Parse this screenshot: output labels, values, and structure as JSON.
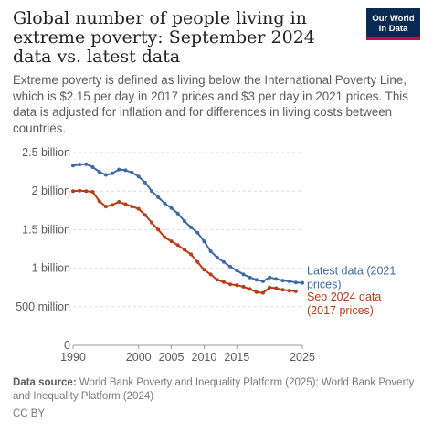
{
  "header": {
    "title": "Global number of people living in extreme poverty: September 2024 data vs. latest data",
    "subtitle": "Extreme poverty is defined as living below the International Poverty Line, which is $2.15 per day in 2017 prices and $3 per day in 2021 prices. This data is adjusted for inflation and for differences in living costs between countries.",
    "logo_line1": "Our World",
    "logo_line2": "in Data"
  },
  "footer": {
    "source_label": "Data source:",
    "source_text": "World Bank Poverty and Inequality Platform (2025); World Bank Poverty and Inequality Platform (2024)",
    "license": "CC BY"
  },
  "colors": {
    "latest": "#3d6aa6",
    "sep2024": "#b83b17",
    "grid": "#dddddd",
    "text": "#5b5b5b"
  },
  "chart_data": {
    "type": "line",
    "title": "Global number of people living in extreme poverty: September 2024 data vs. latest data",
    "xlim": [
      1990,
      2025
    ],
    "ylim": [
      0,
      2500000000
    ],
    "x_ticks": [
      1990,
      2000,
      2005,
      2010,
      2015,
      2025
    ],
    "y_ticks": [
      {
        "value": 0,
        "label": "0"
      },
      {
        "value": 500000000,
        "label": "500 million"
      },
      {
        "value": 1000000000,
        "label": "1 billion"
      },
      {
        "value": 1500000000,
        "label": "1.5 billion"
      },
      {
        "value": 2000000000,
        "label": "2 billion"
      },
      {
        "value": 2500000000,
        "label": "2.5 billion"
      }
    ],
    "grid": "horizontal",
    "legend": "inline labels at right end of lines",
    "series": [
      {
        "name": "Latest data (2021 prices)",
        "label_lines": [
          "Latest data (2021",
          "prices)"
        ],
        "x": [
          1990,
          1991,
          1992,
          1993,
          1994,
          1995,
          1996,
          1997,
          1998,
          1999,
          2000,
          2001,
          2002,
          2003,
          2004,
          2005,
          2006,
          2007,
          2008,
          2009,
          2010,
          2011,
          2012,
          2013,
          2014,
          2015,
          2016,
          2017,
          2018,
          2019,
          2020,
          2021,
          2022,
          2023,
          2024,
          2025
        ],
        "values": [
          2330000000,
          2345000000,
          2350000000,
          2310000000,
          2250000000,
          2210000000,
          2230000000,
          2280000000,
          2270000000,
          2240000000,
          2190000000,
          2110000000,
          2000000000,
          1920000000,
          1840000000,
          1780000000,
          1710000000,
          1610000000,
          1530000000,
          1460000000,
          1350000000,
          1220000000,
          1140000000,
          1080000000,
          1020000000,
          970000000,
          920000000,
          880000000,
          850000000,
          830000000,
          880000000,
          860000000,
          840000000,
          830000000,
          815000000,
          810000000
        ]
      },
      {
        "name": "Sep 2024 data (2017 prices)",
        "label_lines": [
          "Sep 2024 data",
          "(2017 prices)"
        ],
        "x": [
          1990,
          1991,
          1992,
          1993,
          1994,
          1995,
          1996,
          1997,
          1998,
          1999,
          2000,
          2001,
          2002,
          2003,
          2004,
          2005,
          2006,
          2007,
          2008,
          2009,
          2010,
          2011,
          2012,
          2013,
          2014,
          2015,
          2016,
          2017,
          2018,
          2019,
          2020,
          2021,
          2022,
          2023,
          2024
        ],
        "values": [
          2000000000,
          2005000000,
          2000000000,
          1990000000,
          1870000000,
          1800000000,
          1820000000,
          1860000000,
          1830000000,
          1800000000,
          1770000000,
          1690000000,
          1590000000,
          1500000000,
          1400000000,
          1350000000,
          1300000000,
          1240000000,
          1180000000,
          1080000000,
          980000000,
          920000000,
          850000000,
          820000000,
          790000000,
          780000000,
          760000000,
          730000000,
          690000000,
          680000000,
          750000000,
          740000000,
          720000000,
          710000000,
          700000000
        ]
      }
    ]
  }
}
